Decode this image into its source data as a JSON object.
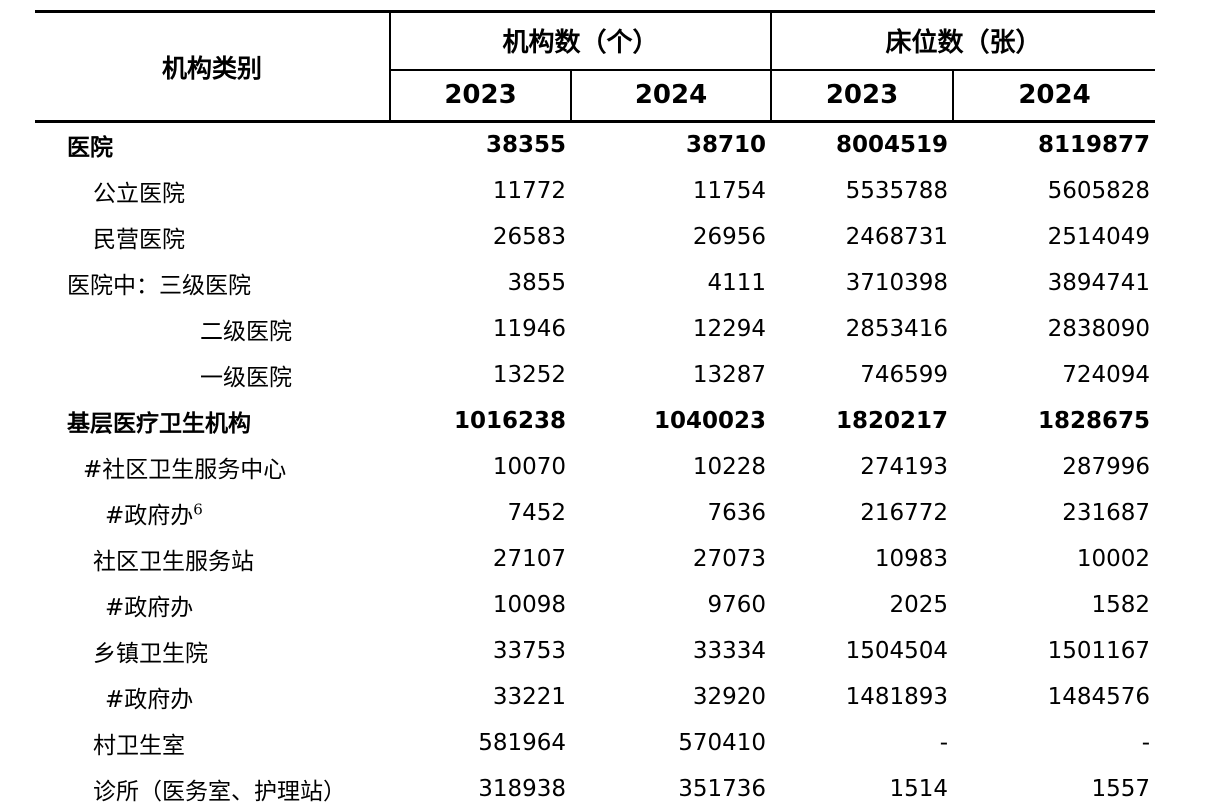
{
  "table": {
    "category_header": "机构类别",
    "groups": [
      {
        "label": "机构数（个）",
        "years": [
          "2023",
          "2024"
        ]
      },
      {
        "label": "床位数（张）",
        "years": [
          "2023",
          "2024"
        ]
      }
    ],
    "rows": [
      {
        "label": "医院",
        "bold": true,
        "indent": 0,
        "values": [
          "38355",
          "38710",
          "8004519",
          "8119877"
        ]
      },
      {
        "label": "公立医院",
        "bold": false,
        "indent": 2,
        "values": [
          "11772",
          "11754",
          "5535788",
          "5605828"
        ]
      },
      {
        "label": "民营医院",
        "bold": false,
        "indent": 2,
        "values": [
          "26583",
          "26956",
          "2468731",
          "2514049"
        ]
      },
      {
        "label": "医院中：三级医院",
        "bold": false,
        "indent": 0,
        "values": [
          "3855",
          "4111",
          "3710398",
          "3894741"
        ]
      },
      {
        "label": "二级医院",
        "bold": false,
        "indent": 4,
        "values": [
          "11946",
          "12294",
          "2853416",
          "2838090"
        ]
      },
      {
        "label": "一级医院",
        "bold": false,
        "indent": 4,
        "values": [
          "13252",
          "13287",
          "746599",
          "724094"
        ]
      },
      {
        "label": "基层医疗卫生机构",
        "bold": true,
        "indent": 0,
        "values": [
          "1016238",
          "1040023",
          "1820217",
          "1828675"
        ]
      },
      {
        "label": "#社区卫生服务中心",
        "bold": false,
        "indent": 1,
        "values": [
          "10070",
          "10228",
          "274193",
          "287996"
        ]
      },
      {
        "label": "#政府办",
        "sup": "6",
        "bold": false,
        "indent": 3,
        "values": [
          "7452",
          "7636",
          "216772",
          "231687"
        ]
      },
      {
        "label": "社区卫生服务站",
        "bold": false,
        "indent": 2,
        "values": [
          "27107",
          "27073",
          "10983",
          "10002"
        ]
      },
      {
        "label": "#政府办",
        "bold": false,
        "indent": 3,
        "values": [
          "10098",
          "9760",
          "2025",
          "1582"
        ]
      },
      {
        "label": "乡镇卫生院",
        "bold": false,
        "indent": 2,
        "values": [
          "33753",
          "33334",
          "1504504",
          "1501167"
        ]
      },
      {
        "label": "#政府办",
        "bold": false,
        "indent": 3,
        "values": [
          "33221",
          "32920",
          "1481893",
          "1484576"
        ]
      },
      {
        "label": "村卫生室",
        "bold": false,
        "indent": 2,
        "values": [
          "581964",
          "570410",
          "-",
          "-"
        ]
      },
      {
        "label": "诊所（医务室、护理站）",
        "bold": false,
        "indent": 2,
        "values": [
          "318938",
          "351736",
          "1514",
          "1557"
        ]
      }
    ]
  }
}
